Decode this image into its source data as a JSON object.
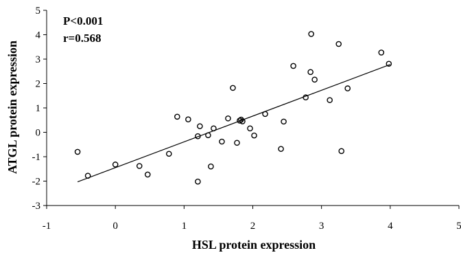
{
  "chart_data": {
    "type": "scatter",
    "title": "",
    "xlabel": "HSL protein expression",
    "ylabel": "ATGL protein expression",
    "xlim": [
      -1,
      5
    ],
    "ylim": [
      -3,
      5
    ],
    "xticks": [
      -1,
      0,
      1,
      2,
      3,
      4,
      5
    ],
    "yticks": [
      -3,
      -2,
      -1,
      0,
      1,
      2,
      3,
      4,
      5
    ],
    "grid": false,
    "annotations": [
      "P<0.001",
      "r=0.568"
    ],
    "series": [
      {
        "points": [
          [
            -0.55,
            -0.8
          ],
          [
            -0.4,
            -1.78
          ],
          [
            0.0,
            -1.32
          ],
          [
            0.35,
            -1.38
          ],
          [
            0.47,
            -1.73
          ],
          [
            0.78,
            -0.88
          ],
          [
            0.9,
            0.64
          ],
          [
            1.06,
            0.53
          ],
          [
            1.2,
            -0.16
          ],
          [
            1.2,
            -2.02
          ],
          [
            1.23,
            0.25
          ],
          [
            1.35,
            -0.12
          ],
          [
            1.39,
            -1.4
          ],
          [
            1.43,
            0.16
          ],
          [
            1.55,
            -0.38
          ],
          [
            1.64,
            0.57
          ],
          [
            1.71,
            1.82
          ],
          [
            1.77,
            -0.43
          ],
          [
            1.81,
            0.48
          ],
          [
            1.83,
            0.52
          ],
          [
            1.85,
            0.45
          ],
          [
            1.96,
            0.16
          ],
          [
            2.02,
            -0.13
          ],
          [
            2.18,
            0.75
          ],
          [
            2.41,
            -0.68
          ],
          [
            2.45,
            0.44
          ],
          [
            2.59,
            2.72
          ],
          [
            2.77,
            1.43
          ],
          [
            2.84,
            2.47
          ],
          [
            2.85,
            4.03
          ],
          [
            2.9,
            2.16
          ],
          [
            3.12,
            1.32
          ],
          [
            3.25,
            3.62
          ],
          [
            3.29,
            -0.77
          ],
          [
            3.38,
            1.8
          ],
          [
            3.87,
            3.27
          ],
          [
            3.98,
            2.81
          ]
        ]
      }
    ],
    "trendline": {
      "x1": -0.55,
      "y1": -2.03,
      "x2": 4.0,
      "y2": 2.78
    }
  }
}
